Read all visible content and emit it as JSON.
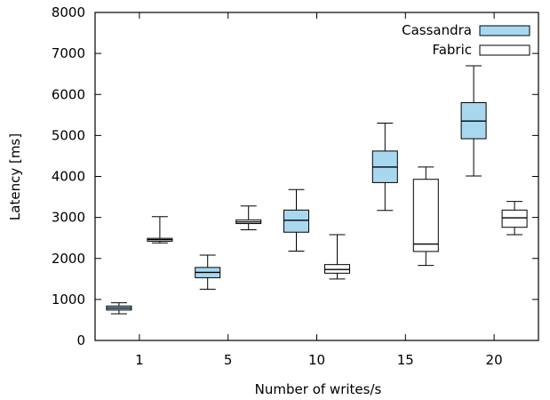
{
  "chart_data": {
    "type": "boxplot",
    "xlabel": "Number of writes/s",
    "ylabel": "Latency [ms]",
    "ylim": [
      0,
      8000
    ],
    "yticks": [
      0,
      1000,
      2000,
      3000,
      4000,
      5000,
      6000,
      7000,
      8000
    ],
    "categories": [
      "1",
      "5",
      "10",
      "15",
      "20"
    ],
    "grid": false,
    "legend_position": "top-right",
    "series": [
      {
        "name": "Cassandra",
        "color": "#a8d8f0",
        "boxes": [
          {
            "min": 650,
            "q1": 740,
            "median": 790,
            "q3": 840,
            "max": 920
          },
          {
            "min": 1250,
            "q1": 1530,
            "median": 1660,
            "q3": 1780,
            "max": 2080
          },
          {
            "min": 2180,
            "q1": 2640,
            "median": 2930,
            "q3": 3180,
            "max": 3680
          },
          {
            "min": 3170,
            "q1": 3850,
            "median": 4230,
            "q3": 4620,
            "max": 5300
          },
          {
            "min": 4010,
            "q1": 4920,
            "median": 5350,
            "q3": 5800,
            "max": 6700
          }
        ]
      },
      {
        "name": "Fabric",
        "color": "#ffffff",
        "boxes": [
          {
            "min": 2380,
            "q1": 2420,
            "median": 2460,
            "q3": 2490,
            "max": 3020
          },
          {
            "min": 2700,
            "q1": 2850,
            "median": 2890,
            "q3": 2940,
            "max": 3280
          },
          {
            "min": 1500,
            "q1": 1640,
            "median": 1730,
            "q3": 1850,
            "max": 2580
          },
          {
            "min": 1830,
            "q1": 2170,
            "median": 2350,
            "q3": 3930,
            "max": 4230
          },
          {
            "min": 2580,
            "q1": 2760,
            "median": 2990,
            "q3": 3180,
            "max": 3390
          }
        ]
      }
    ]
  }
}
